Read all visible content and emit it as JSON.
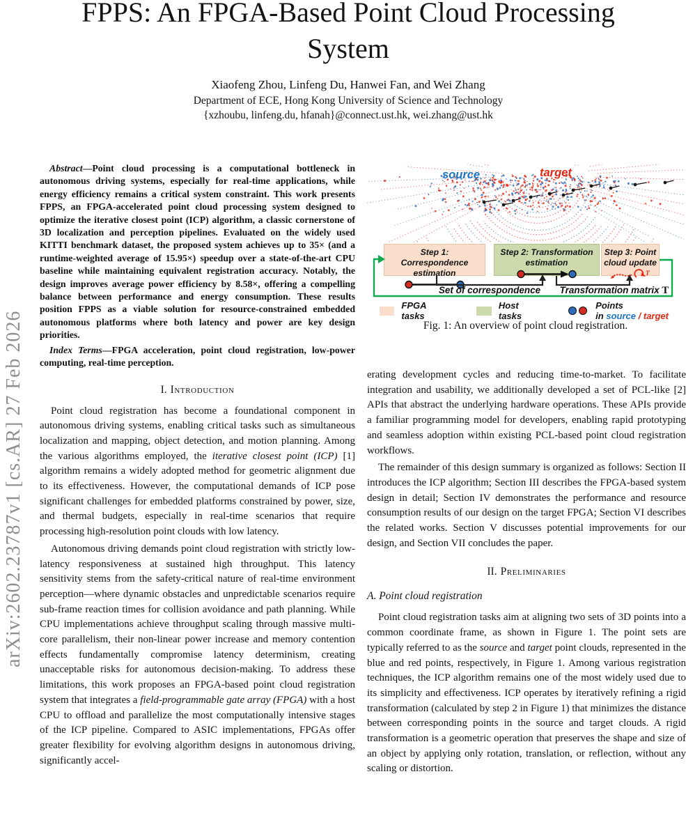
{
  "page": {
    "colors": {
      "background": "#ffffff",
      "text_color": "#141414",
      "sidebar_gray": "#8e8e8e"
    }
  },
  "sidebar": {
    "arxiv_label": "arXiv:2602.23787v1 [cs.AR] 27 Feb 2026"
  },
  "header": {
    "title": "FPPS: An FPGA-Based Point Cloud Processing System",
    "authors": "Xiaofeng Zhou, Linfeng Du, Hanwei Fan, and Wei Zhang",
    "affiliation": "Department of ECE, Hong Kong University of Science and Technology",
    "emails": "{xzhoubu, linfeng.du, hfanah}@connect.ust.hk, wei.zhang@ust.hk"
  },
  "left_column": {
    "abstract": "*Abstract*—Point cloud processing is a computational bottleneck in autonomous driving systems, especially for real-time applications, while energy efficiency remains a critical system constraint. This work presents FPPS, an FPGA-accelerated point cloud processing system designed to optimize the iterative closest point (ICP) algorithm, a classic cornerstone of 3D localization and perception pipelines. Evaluated on the widely used KITTI benchmark dataset, the proposed system achieves up to 35× (and a runtime-weighted average of 15.95×) speedup over a state-of-the-art CPU baseline while maintaining equivalent registration accuracy. Notably, the design improves average power efficiency by 8.58×, offering a compelling balance between performance and energy consumption. These results position FPPS as a viable solution for resource-constrained embedded autonomous platforms where both latency and power are key design priorities.",
    "index_terms": "*Index Terms*—FPGA acceleration, point cloud registration, low-power computing, real-time perception.",
    "section_heading": {
      "number": "I.",
      "title": "Introduction"
    },
    "paragraphs": [
      "Point cloud registration has become a foundational component in autonomous driving systems, enabling critical tasks such as simultaneous localization and mapping, object detection, and motion planning. Among the various algorithms employed, the *iterative closest point (ICP)* [1] algorithm remains a widely adopted method for geometric alignment due to its effectiveness. However, the computational demands of ICP pose significant challenges for embedded platforms constrained by power, size, and thermal budgets, especially in real-time scenarios that require processing high-resolution point clouds with low latency.",
      "Autonomous driving demands point cloud registration with strictly low-latency responsiveness at sustained high throughput. This latency sensitivity stems from the safety-critical nature of real-time environment perception—where dynamic obstacles and unpredictable scenarios require sub-frame reaction times for collision avoidance and path planning. While CPU implementations achieve throughput scaling through massive multi-core parallelism, their non-linear power increase and memory contention effects fundamentally compromise latency determinism, creating unacceptable risks for autonomous decision-making. To address these limitations, this work proposes an FPGA-based point cloud registration system that integrates a *field-programmable gate array (FPGA)* with a host CPU to offload and parallelize the most computationally intensive stages of the ICP pipeline. Compared to ASIC implementations, FPGAs offer greater flexibility for evolving algorithm designs in autonomous driving, significantly accel-"
    ]
  },
  "figure": {
    "source_label": "source",
    "target_label": "target",
    "steps": [
      {
        "title": "Step 1: Correspondence estimation"
      },
      {
        "title": "Step 2: Transformation estimation"
      },
      {
        "title": "Step 3: Point cloud update"
      }
    ],
    "flow_labels": {
      "correspondence": "Set of correspondence",
      "transformation": "Transformation matrix",
      "transformation_symbol": "T",
      "update_symbol": "T"
    },
    "legend": {
      "fpga": "FPGA tasks",
      "host": "Host tasks",
      "points_prefix": "Points in",
      "points_source": "source",
      "points_sep": "/",
      "points_target": "target"
    },
    "caption": "Fig. 1: An overview of point cloud registration.",
    "colors": {
      "source_blue": "#1c74c4",
      "target_red": "#e42613",
      "fpga_bg": "#f9dfcb",
      "host_bg": "#ccd9ad",
      "loop_green": "#0faa4e",
      "dot_red": "#d42a22",
      "dot_blue": "#2b6cb8"
    }
  },
  "right_column": {
    "paragraphs_after_figure": [
      "erating development cycles and reducing time-to-market. To facilitate integration and usability, we additionally developed a set of PCL-like [2] APIs that abstract the underlying hardware operations. These APIs provide a familiar programming model for developers, enabling rapid prototyping and seamless adoption within existing PCL-based point cloud registration workflows.",
      "The remainder of this design summary is organized as follows: Section II introduces the ICP algorithm; Section III describes the FPGA-based system design in detail; Section IV demonstrates the performance and resource consumption results of our design on the target FPGA; Section VI describes the related works. Section V discusses potential improvements for our design, and Section VII concludes the paper."
    ],
    "section_heading": {
      "number": "II.",
      "title": "Preliminaries"
    },
    "subsection_heading": "A. Point cloud registration",
    "paragraphs": [
      "Point cloud registration tasks aim at aligning two sets of 3D points into a common coordinate frame, as shown in Figure 1. The point sets are typically referred to as the *source* and *target* point clouds, represented in the blue and red points, respectively, in Figure 1. Among various registration techniques, the ICP algorithm remains one of the most widely used due to its simplicity and effectiveness. ICP operates by iteratively refining a rigid transformation (calculated by step 2 in Figure 1) that minimizes the distance between corresponding points in the source and target clouds. A rigid transformation is a geometric operation that preserves the shape and size of an object by applying only rotation, translation, or reflection, without any scaling or distortion."
    ]
  }
}
